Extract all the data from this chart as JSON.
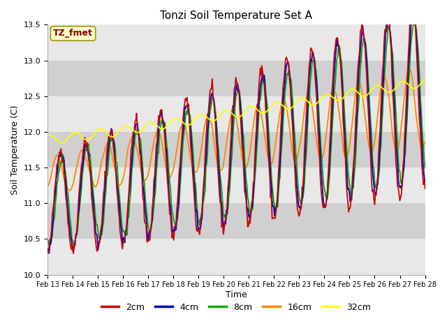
{
  "title": "Tonzi Soil Temperature Set A",
  "xlabel": "Time",
  "ylabel": "Soil Temperature (C)",
  "ylim": [
    10.0,
    13.5
  ],
  "annotation_text": "TZ_fmet",
  "annotation_box_color": "#ffffcc",
  "annotation_text_color": "#800000",
  "legend_labels": [
    "2cm",
    "4cm",
    "8cm",
    "16cm",
    "32cm"
  ],
  "line_colors": [
    "#cc0000",
    "#0000cc",
    "#00aa00",
    "#ff8800",
    "#ffff00"
  ],
  "background_color": "#ffffff",
  "plot_bg_color": "#dcdcdc",
  "band_light": "#e8e8e8",
  "band_dark": "#d0d0d0",
  "grid_color": "#ffffff",
  "x_tick_labels": [
    "Feb 13",
    "Feb 14",
    "Feb 15",
    "Feb 16",
    "Feb 17",
    "Feb 18",
    "Feb 19",
    "Feb 20",
    "Feb 21",
    "Feb 22",
    "Feb 23",
    "Feb 24",
    "Feb 25",
    "Feb 26",
    "Feb 27",
    "Feb 28"
  ],
  "n_points": 480,
  "seed": 42
}
